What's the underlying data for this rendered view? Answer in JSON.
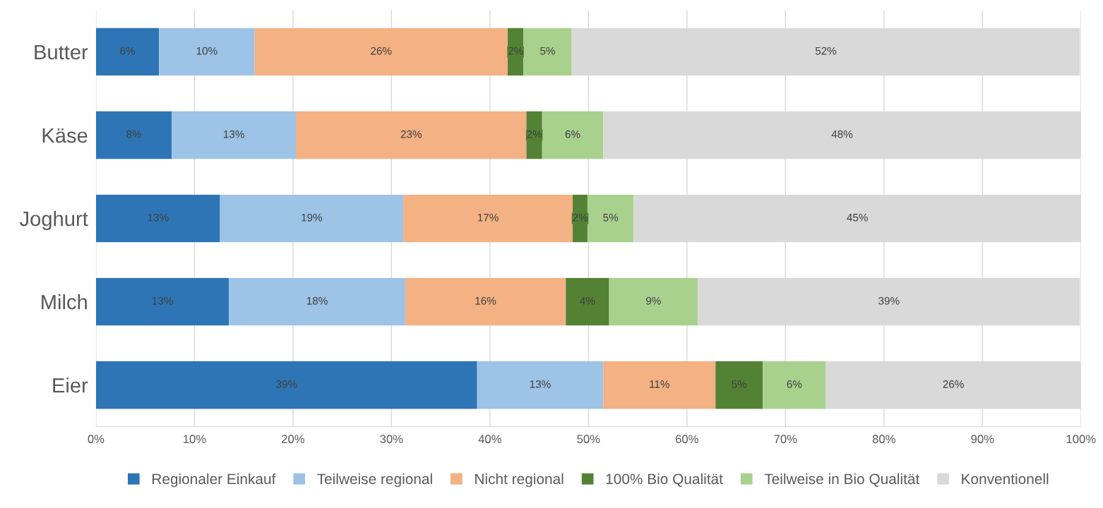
{
  "chart_data": {
    "type": "bar",
    "orientation": "horizontal",
    "stacked": true,
    "categories": [
      "Butter",
      "Käse",
      "Joghurt",
      "Milch",
      "Eier"
    ],
    "series": [
      {
        "name": "Regionaler Einkauf",
        "color": "#2e75b6",
        "values": [
          6.4,
          7.7,
          12.6,
          13.5,
          38.7
        ],
        "value_labels": [
          "6%",
          "8%",
          "13%",
          "13%",
          "39%"
        ]
      },
      {
        "name": "Teilweise regional",
        "color": "#9dc3e6",
        "values": [
          9.7,
          12.6,
          18.6,
          17.9,
          12.8
        ],
        "value_labels": [
          "10%",
          "13%",
          "19%",
          "18%",
          "13%"
        ]
      },
      {
        "name": "Nicht regional",
        "color": "#f4b183",
        "values": [
          25.7,
          23.4,
          17.2,
          16.3,
          11.4
        ],
        "value_labels": [
          "26%",
          "23%",
          "17%",
          "16%",
          "11%"
        ]
      },
      {
        "name": "100% Bio Qualität",
        "color": "#548235",
        "values": [
          1.6,
          1.6,
          1.5,
          4.4,
          4.8
        ],
        "value_labels": [
          "2%",
          "2%",
          "2%",
          "4%",
          "5%"
        ]
      },
      {
        "name": "Teilweise in Bio Qualität",
        "color": "#a9d18e",
        "values": [
          4.9,
          6.2,
          4.7,
          9.0,
          6.4
        ],
        "value_labels": [
          "5%",
          "6%",
          "5%",
          "9%",
          "6%"
        ]
      },
      {
        "name": "Konventionell",
        "color": "#d9d9d9",
        "values": [
          51.6,
          48.5,
          45.4,
          38.8,
          25.9
        ],
        "value_labels": [
          "52%",
          "48%",
          "45%",
          "39%",
          "26%"
        ]
      }
    ],
    "xlim": [
      0,
      100
    ],
    "xticks": [
      {
        "value": 0,
        "label": "0%"
      },
      {
        "value": 10,
        "label": "10%"
      },
      {
        "value": 20,
        "label": "20%"
      },
      {
        "value": 30,
        "label": "30%"
      },
      {
        "value": 40,
        "label": "40%"
      },
      {
        "value": 50,
        "label": "50%"
      },
      {
        "value": 60,
        "label": "60%"
      },
      {
        "value": 70,
        "label": "70%"
      },
      {
        "value": 80,
        "label": "80%"
      },
      {
        "value": 90,
        "label": "90%"
      },
      {
        "value": 100,
        "label": "100%"
      }
    ],
    "grid": "x",
    "legend": "bottom"
  }
}
